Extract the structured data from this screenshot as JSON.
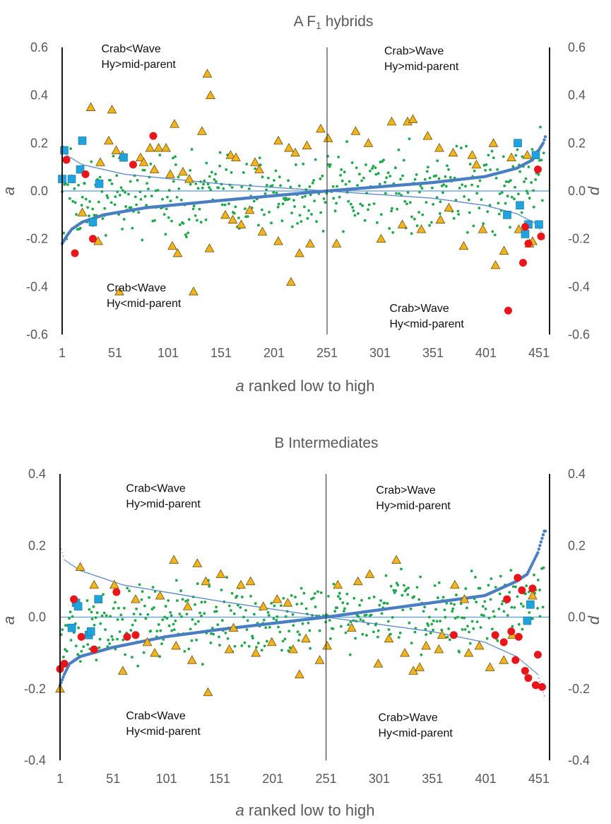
{
  "figure": {
    "palette": {
      "small_points": "#1fa84a",
      "triangles": "#f2b41c",
      "squares": "#1fa3dd",
      "circles": "#e8151b",
      "trend": "#4a7ec2"
    },
    "markers": [
      "small-green-dot",
      "orange-triangle",
      "blue-square",
      "red-circle"
    ]
  },
  "chart_data": [
    {
      "type": "scatter",
      "title_parts": [
        "A  F",
        "1",
        " hybrids"
      ],
      "xlabel_prefix": "a",
      "xlabel_rest": " ranked low to high",
      "ylabel_left": "a",
      "ylabel_right": "d",
      "xlim": [
        1,
        461
      ],
      "ylim": [
        -0.6,
        0.6
      ],
      "xticks": [
        1,
        51,
        101,
        151,
        201,
        251,
        301,
        351,
        401,
        451
      ],
      "yticks_left": [
        "-0.6",
        "-0.4",
        "-0.2",
        "0.0",
        "0.2",
        "0.4",
        "0.6"
      ],
      "yticks_right": [
        "-0.6",
        "-0.4",
        "-0.2",
        "0.0",
        "0.2",
        "0.4",
        "0.6"
      ],
      "divider_x": 251,
      "quadrant_labels": [
        {
          "lines": [
            "Crab<Wave",
            "Hy>mid-parent"
          ],
          "x": 38,
          "y": 0.58
        },
        {
          "lines": [
            "Crab>Wave",
            "Hy>mid-parent"
          ],
          "x": 305,
          "y": 0.57
        },
        {
          "lines": [
            "Crab<Wave",
            "Hy<mid-parent"
          ],
          "x": 43,
          "y": -0.42
        },
        {
          "lines": [
            "Crab>Wave",
            "Hy<mid-parent"
          ],
          "x": 310,
          "y": -0.505
        }
      ],
      "a_ranked_key_points": [
        [
          1,
          -0.22
        ],
        [
          5,
          -0.19
        ],
        [
          10,
          -0.16
        ],
        [
          20,
          -0.13
        ],
        [
          40,
          -0.1
        ],
        [
          80,
          -0.07
        ],
        [
          150,
          -0.04
        ],
        [
          251,
          0.0
        ],
        [
          350,
          0.035
        ],
        [
          400,
          0.06
        ],
        [
          430,
          0.095
        ],
        [
          445,
          0.13
        ],
        [
          455,
          0.2
        ],
        [
          458,
          0.24
        ]
      ],
      "d_ranked_key_points": [
        [
          1,
          0.2
        ],
        [
          5,
          0.15
        ],
        [
          20,
          0.11
        ],
        [
          60,
          0.07
        ],
        [
          150,
          0.03
        ],
        [
          251,
          0.0
        ],
        [
          350,
          -0.03
        ],
        [
          400,
          -0.06
        ],
        [
          430,
          -0.095
        ],
        [
          450,
          -0.14
        ],
        [
          456,
          -0.2
        ]
      ],
      "triangles": [
        [
          138,
          0.49
        ],
        [
          141,
          0.4
        ],
        [
          28,
          0.35
        ],
        [
          48,
          0.34
        ],
        [
          37,
          0.12
        ],
        [
          45,
          0.21
        ],
        [
          52,
          0.17
        ],
        [
          58,
          0.15
        ],
        [
          75,
          0.14
        ],
        [
          78,
          0.12
        ],
        [
          84,
          0.18
        ],
        [
          88,
          0.09
        ],
        [
          92,
          0.18
        ],
        [
          99,
          0.18
        ],
        [
          103,
          0.07
        ],
        [
          107,
          0.28
        ],
        [
          115,
          0.08
        ],
        [
          121,
          0.05
        ],
        [
          133,
          0.25
        ],
        [
          160,
          0.15
        ],
        [
          165,
          0.14
        ],
        [
          183,
          0.12
        ],
        [
          187,
          0.09
        ],
        [
          205,
          0.21
        ],
        [
          215,
          0.18
        ],
        [
          221,
          0.16
        ],
        [
          232,
          0.19
        ],
        [
          245,
          0.26
        ],
        [
          252,
          0.22
        ],
        [
          278,
          0.25
        ],
        [
          290,
          0.2
        ],
        [
          312,
          0.29
        ],
        [
          327,
          0.29
        ],
        [
          332,
          0.3
        ],
        [
          346,
          0.23
        ],
        [
          357,
          0.18
        ],
        [
          370,
          0.16
        ],
        [
          388,
          0.15
        ],
        [
          392,
          0.11
        ],
        [
          408,
          0.2
        ],
        [
          425,
          0.14
        ],
        [
          440,
          0.15
        ],
        [
          20,
          -0.09
        ],
        [
          35,
          -0.21
        ],
        [
          55,
          -0.42
        ],
        [
          105,
          -0.23
        ],
        [
          110,
          -0.26
        ],
        [
          125,
          -0.42
        ],
        [
          140,
          -0.24
        ],
        [
          155,
          -0.1
        ],
        [
          162,
          -0.12
        ],
        [
          170,
          -0.14
        ],
        [
          178,
          -0.08
        ],
        [
          190,
          -0.17
        ],
        [
          205,
          -0.21
        ],
        [
          217,
          -0.38
        ],
        [
          225,
          -0.26
        ],
        [
          235,
          -0.22
        ],
        [
          260,
          -0.22
        ],
        [
          302,
          -0.2
        ],
        [
          322,
          -0.14
        ],
        [
          340,
          -0.16
        ],
        [
          358,
          -0.12
        ],
        [
          366,
          -0.07
        ],
        [
          380,
          -0.23
        ],
        [
          398,
          -0.16
        ],
        [
          410,
          -0.31
        ],
        [
          418,
          -0.25
        ],
        [
          432,
          -0.16
        ],
        [
          442,
          -0.22
        ],
        [
          445,
          -0.21
        ]
      ],
      "squares": [
        [
          1,
          0.05
        ],
        [
          3,
          0.17
        ],
        [
          10,
          0.05
        ],
        [
          18,
          0.09
        ],
        [
          20,
          0.21
        ],
        [
          30,
          -0.13
        ],
        [
          36,
          0.03
        ],
        [
          59,
          0.14
        ],
        [
          421,
          -0.1
        ],
        [
          431,
          0.2
        ],
        [
          433,
          -0.06
        ],
        [
          438,
          -0.18
        ],
        [
          441,
          -0.14
        ],
        [
          448,
          0.15
        ],
        [
          451,
          -0.14
        ]
      ],
      "circles": [
        [
          5,
          0.13
        ],
        [
          13,
          -0.26
        ],
        [
          23,
          0.07
        ],
        [
          30,
          -0.2
        ],
        [
          68,
          0.11
        ],
        [
          87,
          0.23
        ],
        [
          422,
          -0.5
        ],
        [
          436,
          -0.3
        ],
        [
          438,
          -0.15
        ],
        [
          441,
          -0.22
        ],
        [
          450,
          0.09
        ],
        [
          453,
          -0.19
        ]
      ]
    },
    {
      "type": "scatter",
      "title_parts": [
        "B  Intermediates"
      ],
      "xlabel_prefix": "a",
      "xlabel_rest": " ranked low to high",
      "ylabel_left": "a",
      "ylabel_right": "d",
      "xlim": [
        1,
        461
      ],
      "ylim": [
        -0.4,
        0.4
      ],
      "xticks": [
        1,
        51,
        101,
        151,
        201,
        251,
        301,
        351,
        401,
        451
      ],
      "yticks_left": [
        "-0.4",
        "-0.2",
        "0.0",
        "0.2",
        "0.4"
      ],
      "yticks_right": [
        "-0.4",
        "-0.2",
        "0.0",
        "0.2",
        "0.4"
      ],
      "divider_x": 251,
      "quadrant_labels": [
        {
          "lines": [
            "Crab<Wave",
            "Hy>mid-parent"
          ],
          "x": 63,
          "y": 0.35
        },
        {
          "lines": [
            "Crab>Wave",
            "Hy>mid-parent"
          ],
          "x": 298,
          "y": 0.345
        },
        {
          "lines": [
            "Crab<Wave",
            "Hy<mid-parent"
          ],
          "x": 63,
          "y": -0.285
        },
        {
          "lines": [
            "Crab>Wave",
            "Hy<mid-parent"
          ],
          "x": 300,
          "y": -0.29
        }
      ],
      "a_ranked_key_points": [
        [
          1,
          -0.19
        ],
        [
          5,
          -0.16
        ],
        [
          10,
          -0.13
        ],
        [
          20,
          -0.11
        ],
        [
          50,
          -0.085
        ],
        [
          100,
          -0.055
        ],
        [
          150,
          -0.035
        ],
        [
          251,
          0.0
        ],
        [
          350,
          0.04
        ],
        [
          400,
          0.06
        ],
        [
          430,
          0.1
        ],
        [
          440,
          0.12
        ],
        [
          450,
          0.18
        ],
        [
          456,
          0.24
        ]
      ],
      "d_ranked_key_points": [
        [
          1,
          0.2
        ],
        [
          5,
          0.16
        ],
        [
          20,
          0.13
        ],
        [
          60,
          0.09
        ],
        [
          150,
          0.045
        ],
        [
          251,
          0.0
        ],
        [
          350,
          -0.04
        ],
        [
          400,
          -0.07
        ],
        [
          430,
          -0.11
        ],
        [
          450,
          -0.16
        ],
        [
          456,
          -0.22
        ]
      ],
      "triangles": [
        [
          1,
          -0.2
        ],
        [
          20,
          0.14
        ],
        [
          33,
          0.09
        ],
        [
          52,
          0.09
        ],
        [
          60,
          -0.15
        ],
        [
          72,
          0.05
        ],
        [
          83,
          -0.07
        ],
        [
          95,
          0.06
        ],
        [
          108,
          0.16
        ],
        [
          121,
          0.03
        ],
        [
          130,
          0.15
        ],
        [
          138,
          0.1
        ],
        [
          140,
          -0.21
        ],
        [
          152,
          0.12
        ],
        [
          164,
          -0.03
        ],
        [
          171,
          0.09
        ],
        [
          180,
          0.1
        ],
        [
          192,
          0.03
        ],
        [
          205,
          0.05
        ],
        [
          215,
          0.04
        ],
        [
          226,
          -0.16
        ],
        [
          232,
          -0.06
        ],
        [
          245,
          -0.12
        ],
        [
          252,
          -0.08
        ],
        [
          262,
          0.09
        ],
        [
          275,
          -0.03
        ],
        [
          281,
          0.1
        ],
        [
          292,
          0.12
        ],
        [
          300,
          -0.13
        ],
        [
          317,
          0.16
        ],
        [
          333,
          -0.15
        ],
        [
          339,
          -0.14
        ],
        [
          345,
          -0.08
        ],
        [
          357,
          -0.09
        ],
        [
          372,
          0.09
        ],
        [
          381,
          0.05
        ],
        [
          395,
          -0.08
        ],
        [
          405,
          -0.14
        ],
        [
          418,
          -0.12
        ],
        [
          426,
          -0.05
        ],
        [
          445,
          0.06
        ],
        [
          90,
          -0.1
        ],
        [
          110,
          -0.08
        ],
        [
          125,
          -0.12
        ],
        [
          160,
          -0.09
        ],
        [
          185,
          -0.1
        ],
        [
          200,
          -0.07
        ],
        [
          220,
          -0.09
        ],
        [
          310,
          -0.06
        ],
        [
          325,
          -0.1
        ],
        [
          360,
          -0.05
        ],
        [
          385,
          -0.1
        ]
      ],
      "squares": [
        [
          12,
          -0.03
        ],
        [
          16,
          0.04
        ],
        [
          18,
          0.03
        ],
        [
          28,
          -0.05
        ],
        [
          30,
          -0.04
        ],
        [
          37,
          0.05
        ],
        [
          440,
          -0.01
        ],
        [
          443,
          0.035
        ]
      ],
      "circles": [
        [
          1,
          -0.145
        ],
        [
          5,
          -0.13
        ],
        [
          14,
          0.05
        ],
        [
          21,
          -0.055
        ],
        [
          33,
          -0.09
        ],
        [
          54,
          0.07
        ],
        [
          64,
          -0.055
        ],
        [
          72,
          -0.05
        ],
        [
          371,
          -0.05
        ],
        [
          410,
          -0.05
        ],
        [
          418,
          -0.07
        ],
        [
          421,
          0.05
        ],
        [
          425,
          -0.04
        ],
        [
          429,
          -0.12
        ],
        [
          431,
          0.11
        ],
        [
          432,
          -0.055
        ],
        [
          435,
          0.075
        ],
        [
          438,
          -0.15
        ],
        [
          441,
          -0.17
        ],
        [
          445,
          0.08
        ],
        [
          448,
          -0.19
        ],
        [
          450,
          -0.105
        ],
        [
          454,
          -0.195
        ]
      ]
    }
  ]
}
